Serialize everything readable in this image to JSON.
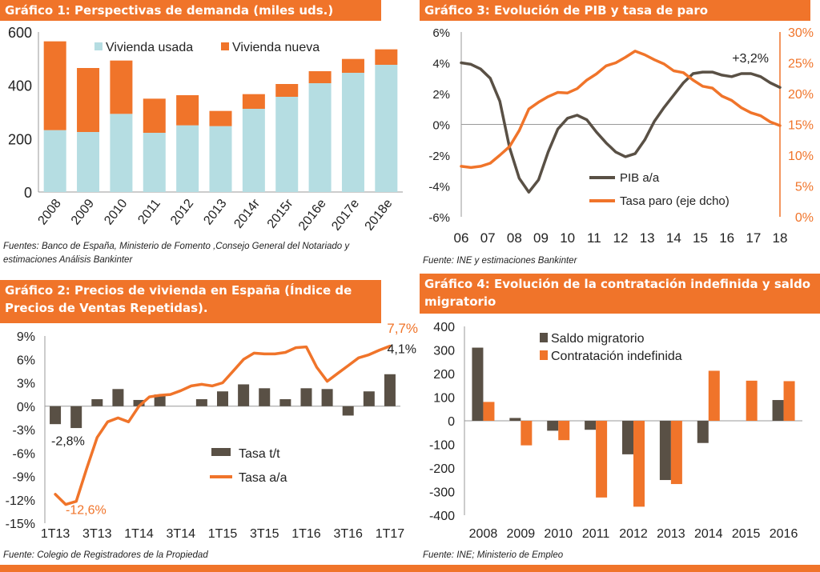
{
  "colors": {
    "orange": "#f0742a",
    "teal": "#b5dde2",
    "grey": "#595045",
    "header": "#f0742a"
  },
  "chart_data": [
    {
      "id": "g1",
      "type": "bar",
      "stacked": true,
      "title": "Gráfico 1: Perspectivas de demanda (miles uds.)",
      "categories": [
        "2008",
        "2009",
        "2010",
        "2011",
        "2012",
        "2013",
        "2014r",
        "2015r",
        "2016e",
        "2017e",
        "2018e"
      ],
      "series": [
        {
          "name": "Vivienda usada",
          "values": [
            232,
            225,
            293,
            222,
            250,
            247,
            312,
            357,
            408,
            447,
            477
          ]
        },
        {
          "name": "Vivienda nueva",
          "values": [
            333,
            240,
            200,
            128,
            113,
            57,
            55,
            48,
            45,
            52,
            58
          ]
        }
      ],
      "yticks": [
        0,
        200,
        400,
        600
      ],
      "ylim": [
        0,
        600
      ],
      "source": "Fuentes: Banco de España, Ministerio de Fomento ,Consejo General del Notariado y estimaciones Análisis Bankinter"
    },
    {
      "id": "g2",
      "type": "bar+line",
      "title": "Gráfico 2: Precios de vivienda en España (Índice de Precios de Ventas Repetidas).",
      "bar_series": {
        "name": "Tasa t/t",
        "values": [
          -2.3,
          -2.8,
          0.9,
          2.2,
          0.8,
          1.5,
          0.0,
          0.9,
          1.9,
          2.8,
          2.3,
          0.9,
          2.3,
          2.2,
          -1.2,
          1.9,
          4.1
        ]
      },
      "line_series": {
        "name": "Tasa a/a",
        "x": [
          0,
          0.5,
          1,
          1.5,
          2,
          2.5,
          3,
          3.5,
          4,
          4.5,
          5,
          5.5,
          6,
          6.5,
          7,
          7.5,
          8,
          8.5,
          9,
          9.5,
          10,
          10.5,
          11,
          11.5,
          12,
          12.5,
          13,
          13.5,
          14,
          14.5,
          15,
          15.5,
          16
        ],
        "values": [
          -11.3,
          -12.6,
          -12.2,
          -8,
          -4,
          -2,
          -1.5,
          -2,
          0,
          1.2,
          1.4,
          1.5,
          2,
          2.6,
          2.8,
          2.6,
          3,
          4.5,
          6,
          6.8,
          6.7,
          6.7,
          6.9,
          7.5,
          7.6,
          5,
          3.2,
          4.2,
          5.2,
          6.2,
          6.6,
          7.2,
          7.7
        ]
      },
      "xticks": [
        "1T13",
        "3T13",
        "1T14",
        "3T14",
        "1T15",
        "3T15",
        "1T16",
        "3T16",
        "1T17"
      ],
      "yticks": [
        "9%",
        "6%",
        "3%",
        "0%",
        "-3%",
        "-6%",
        "-9%",
        "-12%",
        "-15%"
      ],
      "ylim": [
        -15,
        9
      ],
      "annotations": {
        "min_bar": "-2,8%",
        "min_line": "-12,6%",
        "last_line": "7,7%",
        "last_bar": "4,1%"
      },
      "source": "Fuente: Colegio de Registradores de la Propiedad"
    },
    {
      "id": "g3",
      "type": "line",
      "title": "Gráfico 3: Evolución de PIB y tasa de paro",
      "x_start": 2006,
      "x_end": 2018,
      "series": [
        {
          "name": "PIB a/a",
          "axis": "left",
          "values": [
            4.0,
            3.9,
            3.6,
            3.0,
            1.5,
            -1.5,
            -3.5,
            -4.4,
            -3.6,
            -1.8,
            -0.3,
            0.4,
            0.6,
            0.3,
            -0.5,
            -1.2,
            -1.8,
            -2.1,
            -1.9,
            -1.0,
            0.2,
            1.1,
            1.9,
            2.7,
            3.3,
            3.4,
            3.4,
            3.2,
            3.1,
            3.3,
            3.3,
            3.1,
            2.7,
            2.4
          ]
        },
        {
          "name": "Tasa paro (eje dcho)",
          "axis": "right",
          "values": [
            8.2,
            8.0,
            8.2,
            8.7,
            10.0,
            11.4,
            14.0,
            17.5,
            18.6,
            19.5,
            20.2,
            20.1,
            20.8,
            22.2,
            23.2,
            24.5,
            25.0,
            25.9,
            26.9,
            26.3,
            25.5,
            24.8,
            23.7,
            23.4,
            22.2,
            21.2,
            20.9,
            19.6,
            18.9,
            17.7,
            16.9,
            16.4,
            15.4,
            14.8
          ]
        }
      ],
      "xticks": [
        "06",
        "07",
        "08",
        "09",
        "10",
        "11",
        "12",
        "13",
        "14",
        "15",
        "16",
        "17",
        "18"
      ],
      "yticks_left": [
        "6%",
        "4%",
        "2%",
        "0%",
        "-2%",
        "-4%",
        "-6%"
      ],
      "yticks_right": [
        "30%",
        "25%",
        "20%",
        "15%",
        "10%",
        "5%",
        "0%"
      ],
      "ylim_left": [
        -6,
        6
      ],
      "ylim_right": [
        0,
        30
      ],
      "annotation": "+3,2%",
      "source": "Fuente: INE y estimaciones Bankinter"
    },
    {
      "id": "g4",
      "type": "bar",
      "title": "Gráfico 4: Evolución de la contratación indefinida y saldo migratorio",
      "categories": [
        "2008",
        "2009",
        "2010",
        "2011",
        "2012",
        "2013",
        "2014",
        "2015",
        "2016"
      ],
      "series": [
        {
          "name": "Saldo migratorio",
          "values": [
            310,
            12,
            -42,
            -38,
            -142,
            -251,
            -94,
            0,
            88
          ]
        },
        {
          "name": "Contratación indefinida",
          "values": [
            80,
            -104,
            -82,
            -325,
            -364,
            -268,
            212,
            170,
            168
          ]
        }
      ],
      "yticks": [
        "400",
        "300",
        "200",
        "100",
        "0",
        "-100",
        "-200",
        "-300",
        "-400"
      ],
      "ylim": [
        -400,
        400
      ],
      "source": "Fuente: INE; Ministerio de Empleo"
    }
  ]
}
